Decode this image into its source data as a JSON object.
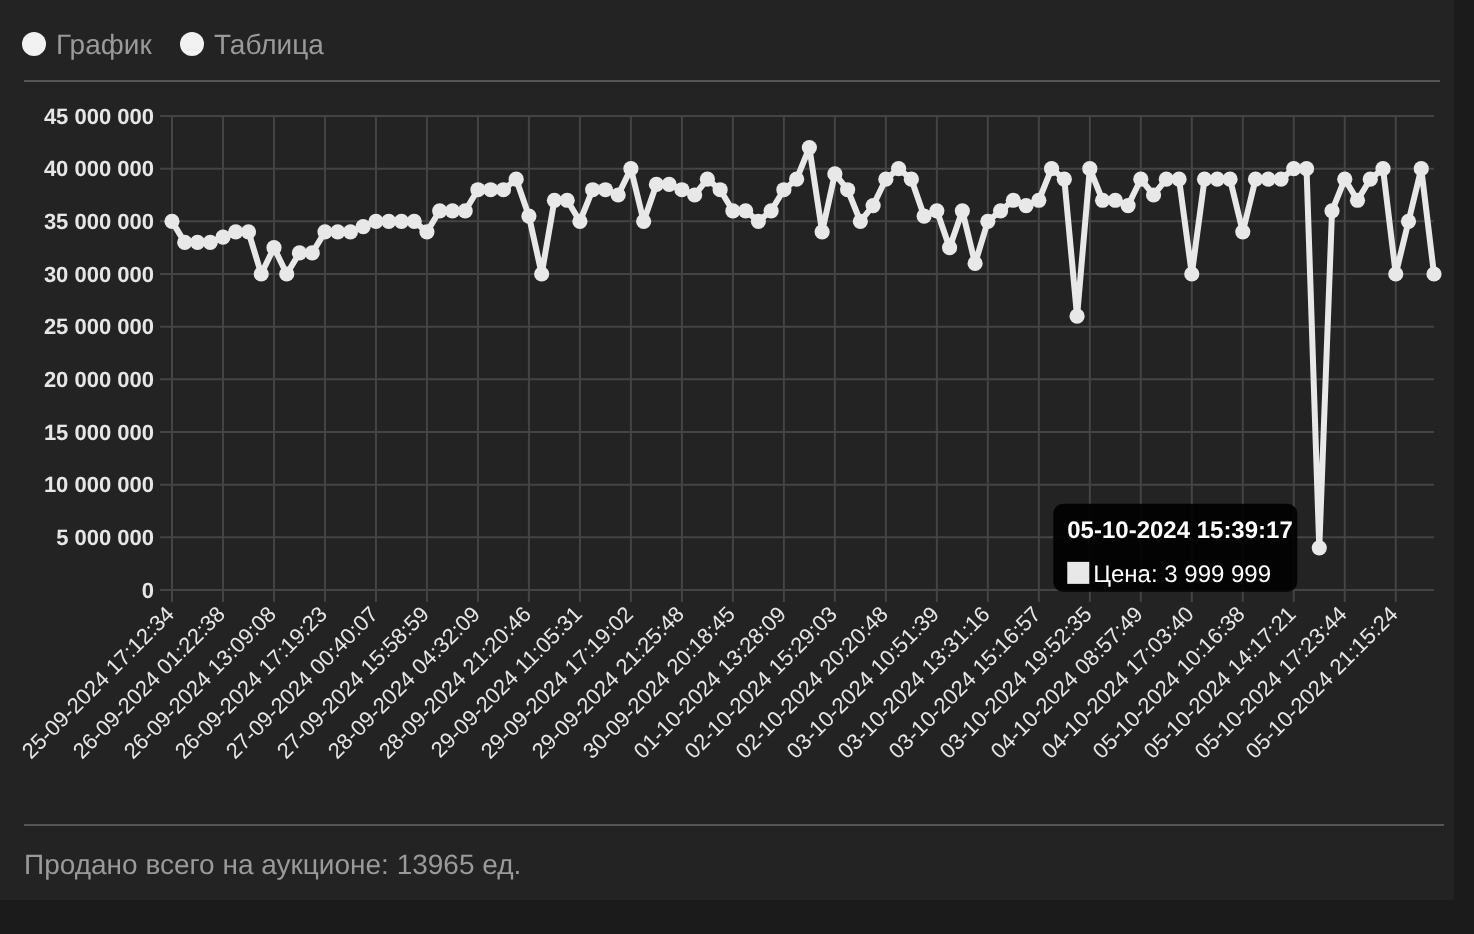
{
  "chart_data": {
    "type": "line",
    "marker": "circle",
    "grid": true,
    "annotations": [
      "График",
      "Таблица",
      "Продано всего на аукционе: 13965 ед.",
      "05-10-2024 15:39:17",
      "Цена: 3 999 999"
    ],
    "categories": [
      "25-09-2024 17:12:34",
      null,
      null,
      null,
      "26-09-2024 01:22:38",
      null,
      null,
      null,
      "26-09-2024 13:09:08",
      null,
      null,
      null,
      "26-09-2024 17:19:23",
      null,
      null,
      null,
      "27-09-2024 00:40:07",
      null,
      null,
      null,
      "27-09-2024 15:58:59",
      null,
      null,
      null,
      "28-09-2024 04:32:09",
      null,
      null,
      null,
      "28-09-2024 21:20:46",
      null,
      null,
      null,
      "29-09-2024 11:05:31",
      null,
      null,
      null,
      "29-09-2024 17:19:02",
      null,
      null,
      null,
      "29-09-2024 21:25:48",
      null,
      null,
      null,
      "30-09-2024 20:18:45",
      null,
      null,
      null,
      "01-10-2024 13:28:09",
      null,
      null,
      null,
      "02-10-2024 15:29:03",
      null,
      null,
      null,
      "02-10-2024 20:20:48",
      null,
      null,
      null,
      "03-10-2024 10:51:39",
      null,
      null,
      null,
      "03-10-2024 13:31:16",
      null,
      null,
      null,
      "03-10-2024 15:16:57",
      null,
      null,
      null,
      "03-10-2024 19:52:35",
      null,
      null,
      null,
      "04-10-2024 08:57:49",
      null,
      null,
      null,
      "04-10-2024 17:03:40",
      null,
      null,
      null,
      "05-10-2024 10:16:38",
      null,
      null,
      null,
      "05-10-2024 14:17:21",
      null,
      null,
      null,
      "05-10-2024 17:23:44",
      null,
      null,
      null,
      "05-10-2024 21:15:24",
      null,
      null,
      null
    ],
    "series": [
      {
        "color": "#e8e8e8",
        "values": [
          35000000,
          33000000,
          33000000,
          33000000,
          33500000,
          34000000,
          34000000,
          30000000,
          32500000,
          30000000,
          32000000,
          32000000,
          34000000,
          34000000,
          34000000,
          34500000,
          35000000,
          35000000,
          35000000,
          35000000,
          34000000,
          36000000,
          36000000,
          36000000,
          38000000,
          38000000,
          38000000,
          39000000,
          35500000,
          30000000,
          37000000,
          37000000,
          35000000,
          38000000,
          38000000,
          37500000,
          40000000,
          35000000,
          38500000,
          38500000,
          38000000,
          37500000,
          39000000,
          38000000,
          36000000,
          36000000,
          35000000,
          36000000,
          38000000,
          39000000,
          42000000,
          34000000,
          39500000,
          38000000,
          35000000,
          36500000,
          39000000,
          40000000,
          39000000,
          35500000,
          36000000,
          32500000,
          36000000,
          31000000,
          35000000,
          36000000,
          37000000,
          36500000,
          37000000,
          40000000,
          39000000,
          26000000,
          40000000,
          37000000,
          37000000,
          36500000,
          39000000,
          37500000,
          39000000,
          39000000,
          30000000,
          39000000,
          39000000,
          39000000,
          34000000,
          39000000,
          39000000,
          39000000,
          40000000,
          40000000,
          3999999,
          36000000,
          39000000,
          37000000,
          39000000,
          40000000,
          30000000,
          35000000,
          40000000,
          30000000
        ]
      }
    ],
    "ylim": [
      0,
      45000000
    ],
    "yticks": [
      {
        "value": 0,
        "label": "0"
      },
      {
        "value": 5000000,
        "label": "5 000 000"
      },
      {
        "value": 10000000,
        "label": "10 000 000"
      },
      {
        "value": 15000000,
        "label": "15 000 000"
      },
      {
        "value": 20000000,
        "label": "20 000 000"
      },
      {
        "value": 25000000,
        "label": "25 000 000"
      },
      {
        "value": 30000000,
        "label": "30 000 000"
      },
      {
        "value": 35000000,
        "label": "35 000 000"
      },
      {
        "value": 40000000,
        "label": "40 000 000"
      },
      {
        "value": 45000000,
        "label": "45 000 000"
      }
    ]
  }
}
